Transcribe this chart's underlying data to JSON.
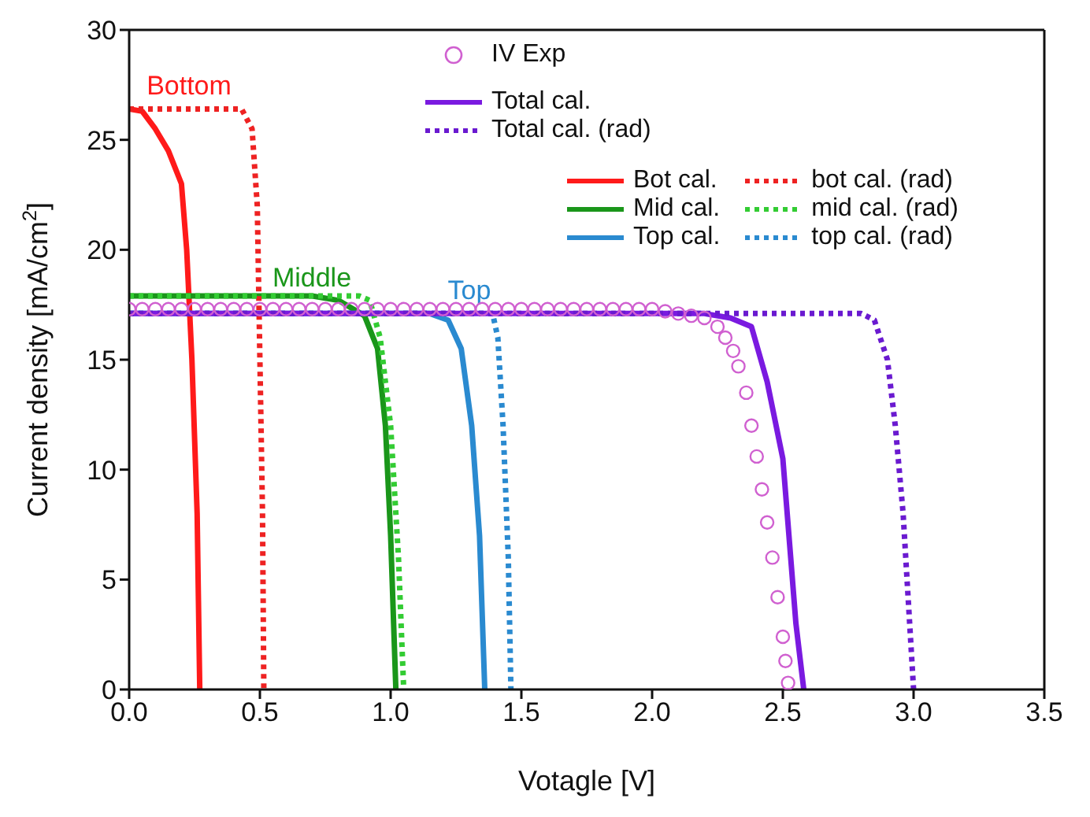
{
  "chart_data": {
    "type": "line",
    "xlabel": "Votagle [V]",
    "ylabel": "Current density [mA/cm$^{2}$]",
    "xlim": [
      0,
      3.5
    ],
    "xticks": [
      {
        "value": 0,
        "label": "0.0"
      },
      0.5,
      {
        "value": 1,
        "label": "1.0"
      },
      1.5,
      {
        "value": 2,
        "label": "2.0"
      },
      2.5,
      {
        "value": 3,
        "label": "3.0"
      },
      3.5
    ],
    "ylim": [
      0,
      30
    ],
    "yticks": [
      0,
      5,
      10,
      15,
      20,
      25,
      30
    ],
    "legend": "top right",
    "annotations": [
      "Bottom",
      "Middle",
      "Top"
    ],
    "series": [
      {
        "name": "Bot cal.",
        "line_style": "solid",
        "marker": "none",
        "color": "#ff1a1a",
        "x": [
          0,
          0.05,
          0.1,
          0.15,
          0.2,
          0.22,
          0.24,
          0.26,
          0.27
        ],
        "values": [
          26.4,
          26.3,
          25.5,
          24.5,
          23,
          20,
          15,
          8,
          0
        ]
      },
      {
        "name": "Mid cal.",
        "line_style": "solid",
        "marker": "none",
        "color": "#1a961a",
        "x": [
          0,
          0.7,
          0.8,
          0.9,
          0.95,
          0.98,
          1.0,
          1.02
        ],
        "values": [
          17.9,
          17.9,
          17.7,
          17,
          15.5,
          12,
          7,
          0
        ]
      },
      {
        "name": "Top cal.",
        "line_style": "solid",
        "marker": "none",
        "color": "#2a8ad0",
        "x": [
          0,
          1.15,
          1.22,
          1.27,
          1.31,
          1.34,
          1.36
        ],
        "values": [
          17.1,
          17.1,
          16.8,
          15.5,
          12,
          7,
          0
        ]
      },
      {
        "name": "bot cal. (rad)",
        "line_style": "dotted",
        "marker": "none",
        "color": "#ee2222",
        "x": [
          0,
          0.43,
          0.47,
          0.49,
          0.5,
          0.51,
          0.515
        ],
        "values": [
          26.4,
          26.4,
          25.5,
          22,
          15,
          8,
          0
        ]
      },
      {
        "name": "mid cal. (rad)",
        "line_style": "dotted",
        "marker": "none",
        "color": "#33cc33",
        "x": [
          0,
          0.88,
          0.92,
          0.96,
          1.0,
          1.03,
          1.05
        ],
        "values": [
          17.9,
          17.9,
          17.7,
          16,
          12,
          6,
          0
        ]
      },
      {
        "name": "top cal. (rad)",
        "line_style": "dotted",
        "marker": "none",
        "color": "#2a8ad0",
        "x": [
          0,
          1.39,
          1.41,
          1.43,
          1.45,
          1.46
        ],
        "values": [
          17.1,
          17.1,
          16,
          12,
          6,
          0
        ]
      },
      {
        "name": "Total cal.",
        "line_style": "solid",
        "marker": "none",
        "color": "#7a1ae0",
        "x": [
          0,
          2.2,
          2.3,
          2.38,
          2.44,
          2.5,
          2.53,
          2.55,
          2.58
        ],
        "values": [
          17.1,
          17.1,
          16.9,
          16.5,
          14,
          10.5,
          6,
          3,
          0
        ]
      },
      {
        "name": "Total cal. (rad)",
        "line_style": "dotted",
        "marker": "none",
        "color": "#6a1ad0",
        "x": [
          0,
          2.8,
          2.85,
          2.9,
          2.93,
          2.96,
          2.98,
          3.0
        ],
        "values": [
          17.1,
          17.1,
          16.8,
          15,
          12,
          8,
          4,
          0
        ]
      },
      {
        "name": "IV Exp",
        "type": "scatter",
        "marker": "circle",
        "color": "#d060d0",
        "x": [
          0,
          0.05,
          0.1,
          0.15,
          0.2,
          0.25,
          0.3,
          0.35,
          0.4,
          0.45,
          0.5,
          0.55,
          0.6,
          0.65,
          0.7,
          0.75,
          0.8,
          0.85,
          0.9,
          0.95,
          1.0,
          1.05,
          1.1,
          1.15,
          1.2,
          1.25,
          1.3,
          1.35,
          1.4,
          1.45,
          1.5,
          1.55,
          1.6,
          1.65,
          1.7,
          1.75,
          1.8,
          1.85,
          1.9,
          1.95,
          2.0,
          2.05,
          2.1,
          2.15,
          2.2,
          2.25,
          2.28,
          2.31,
          2.33,
          2.36,
          2.38,
          2.4,
          2.42,
          2.44,
          2.46,
          2.48,
          2.5,
          2.51,
          2.52
        ],
        "values": [
          17.3,
          17.3,
          17.3,
          17.3,
          17.3,
          17.3,
          17.3,
          17.3,
          17.3,
          17.3,
          17.3,
          17.3,
          17.3,
          17.3,
          17.3,
          17.3,
          17.3,
          17.3,
          17.3,
          17.3,
          17.3,
          17.3,
          17.3,
          17.3,
          17.3,
          17.3,
          17.3,
          17.3,
          17.3,
          17.3,
          17.3,
          17.3,
          17.3,
          17.3,
          17.3,
          17.3,
          17.3,
          17.3,
          17.3,
          17.3,
          17.3,
          17.2,
          17.1,
          17,
          16.9,
          16.5,
          16,
          15.4,
          14.7,
          13.5,
          12,
          10.6,
          9.1,
          7.6,
          6,
          4.2,
          2.4,
          1.3,
          0.3
        ]
      }
    ]
  }
}
